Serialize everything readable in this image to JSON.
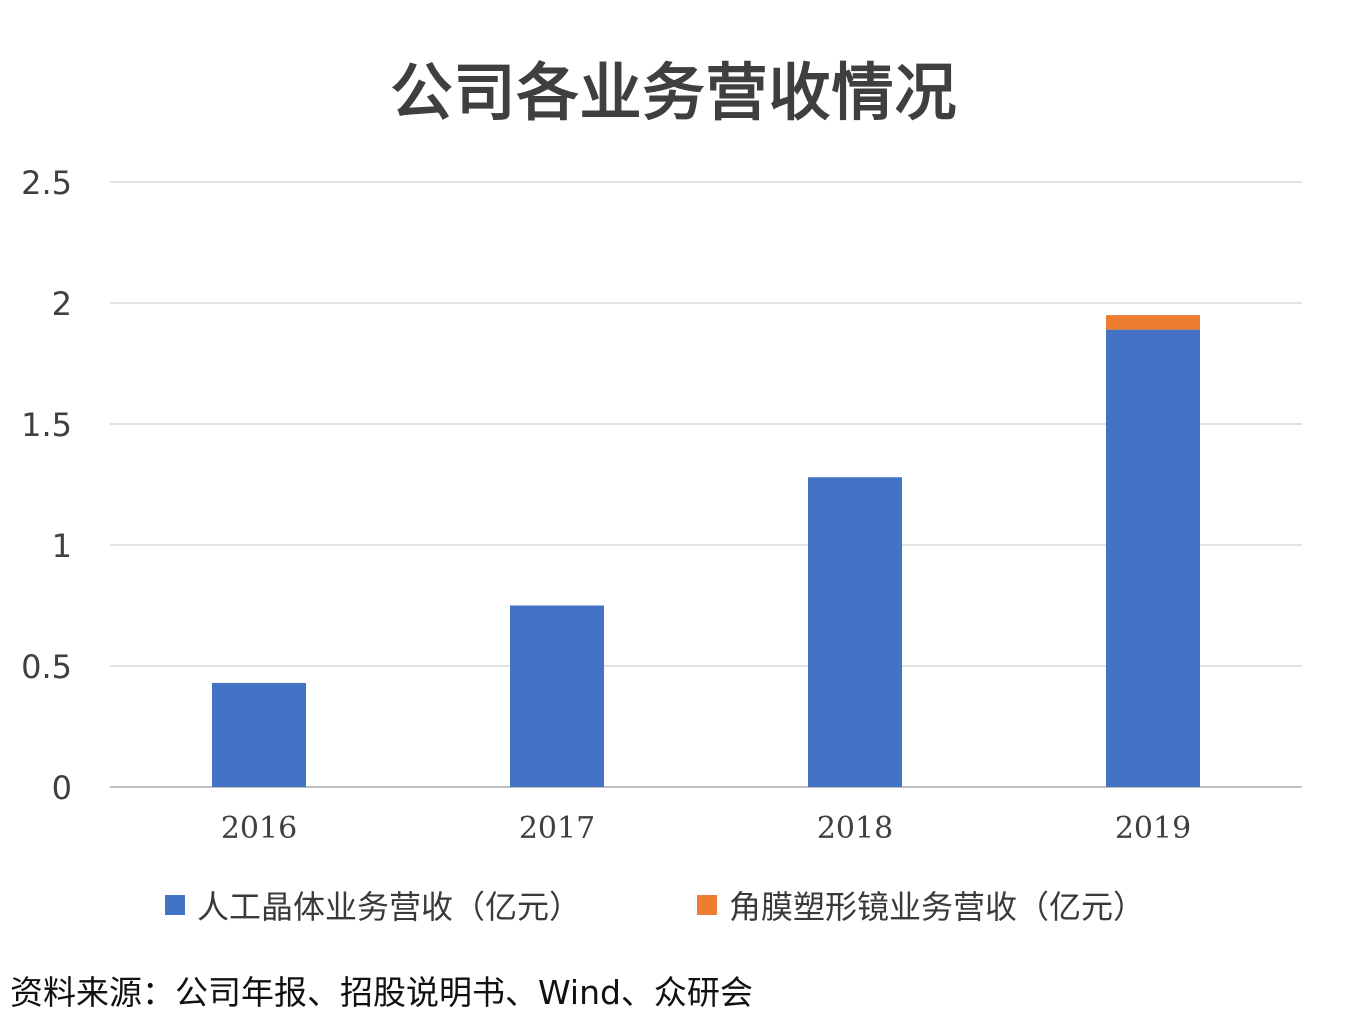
{
  "chart_data": {
    "type": "bar",
    "stacked": true,
    "title": "公司各业务营收情况",
    "categories": [
      "2016",
      "2017",
      "2018",
      "2019"
    ],
    "series": [
      {
        "name": "人工晶体业务营收（亿元）",
        "color": "#4472C4",
        "values": [
          0.43,
          0.75,
          1.28,
          1.89
        ]
      },
      {
        "name": "角膜塑形镜业务营收（亿元）",
        "color": "#ED7D31",
        "values": [
          0,
          0,
          0,
          0.06
        ]
      }
    ],
    "ylim": [
      0,
      2.5
    ],
    "yticks": [
      "0",
      "0.5",
      "1",
      "1.5",
      "2",
      "2.5"
    ],
    "grid": true,
    "legend": "bottom"
  },
  "source_note": "资料来源：公司年报、招股说明书、Wind、众研会"
}
